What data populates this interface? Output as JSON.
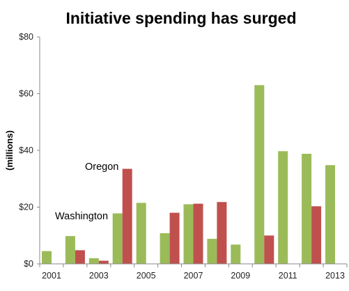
{
  "chart_data": {
    "type": "bar",
    "title": "Initiative spending has surged",
    "ylabel": "(millions)",
    "xlabel": "",
    "ylim": [
      0,
      80
    ],
    "ytick_labels": [
      "$0",
      "$20",
      "$40",
      "$60",
      "$80"
    ],
    "ytick_values": [
      0,
      20,
      40,
      60,
      80
    ],
    "categories": [
      "2001",
      "2002",
      "2003",
      "2004",
      "2005",
      "2006",
      "2007",
      "2008",
      "2009",
      "2010",
      "2011",
      "2012",
      "2013"
    ],
    "xtick_labels": [
      "2001",
      "2003",
      "2005",
      "2007",
      "2009",
      "2011",
      "2013"
    ],
    "grid": false,
    "legend": "inline labels",
    "series": [
      {
        "name": "Washington",
        "color": "#9BBB59",
        "values": [
          4.5,
          9.8,
          2,
          17.8,
          21.5,
          10.8,
          21,
          8.8,
          6.8,
          63,
          39.7,
          38.8,
          34.8
        ]
      },
      {
        "name": "Oregon",
        "color": "#C0504D",
        "values": [
          0,
          4.8,
          1.1,
          33.5,
          0,
          18,
          21.2,
          21.8,
          0,
          10,
          0,
          20.3,
          0
        ]
      }
    ]
  }
}
